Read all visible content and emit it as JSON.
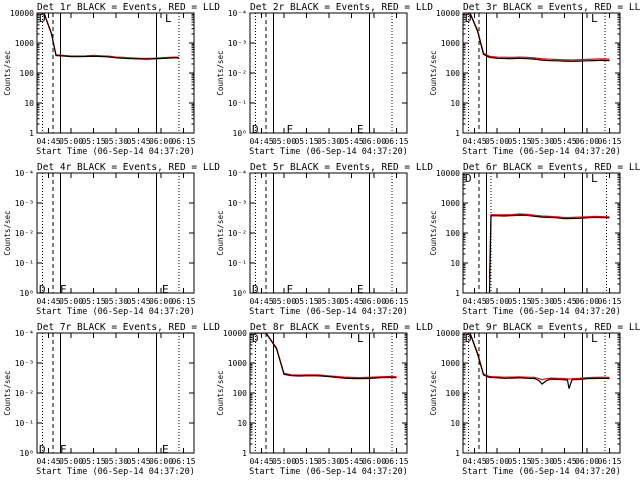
{
  "figure": {
    "background": "#ffffff",
    "axis_color": "#000000",
    "events_color": "#000000",
    "lld_color": "#ff0000"
  },
  "chart_data": [
    {
      "type": "line",
      "title": "Det 1r BLACK = Events, RED = LLD",
      "xlabel": "Start Time (06-Sep-14 04:37:20)",
      "ylabel": "Counts/sec",
      "x_ticks": [
        "04:45",
        "05:00",
        "05:15",
        "05:30",
        "05:45",
        "06:00",
        "06:15"
      ],
      "y_ticks": [
        "1",
        "10",
        "100",
        "1000",
        "10000"
      ],
      "y_log": true,
      "ylim": [
        1,
        10000
      ],
      "markers": [
        {
          "label": "D",
          "x": "04:38",
          "y": 10000
        },
        {
          "label": "L",
          "x": "06:02",
          "y": 10000
        }
      ],
      "series": [
        {
          "name": "Events",
          "color": "#000000",
          "x": [
            "04:38",
            "04:42",
            "04:47",
            "04:50",
            "04:55",
            "05:00",
            "05:05",
            "05:10",
            "05:15",
            "05:20",
            "05:25",
            "05:30",
            "05:35",
            "05:40",
            "05:45",
            "05:50",
            "05:55",
            "06:00",
            "06:05",
            "06:10",
            "06:12"
          ],
          "y": [
            10000,
            10000,
            2000,
            380,
            370,
            350,
            350,
            355,
            360,
            355,
            345,
            320,
            310,
            300,
            295,
            290,
            295,
            305,
            315,
            320,
            315
          ]
        },
        {
          "name": "LLD",
          "color": "#ff0000",
          "x": [
            "04:38",
            "04:42",
            "04:47",
            "04:50",
            "04:55",
            "05:00",
            "05:05",
            "05:10",
            "05:15",
            "05:20",
            "05:25",
            "05:30",
            "05:35",
            "05:40",
            "05:45",
            "05:50",
            "05:55",
            "06:00",
            "06:05",
            "06:10",
            "06:12"
          ],
          "y": [
            10000,
            10000,
            2100,
            400,
            390,
            370,
            370,
            375,
            385,
            375,
            365,
            340,
            330,
            318,
            312,
            308,
            312,
            322,
            332,
            338,
            332
          ]
        }
      ]
    },
    {
      "type": "line",
      "title": "Det 2r BLACK = Events, RED = LLD",
      "xlabel": "Start Time (06-Sep-14 04:37:20)",
      "ylabel": "Counts/sec",
      "x_ticks": [
        "04:45",
        "05:00",
        "05:15",
        "05:30",
        "05:45",
        "06:00",
        "06:15"
      ],
      "y_ticks": [
        "10⁰",
        "10⁻¹",
        "10⁻²",
        "10⁻³",
        "10⁻⁴"
      ],
      "y_log": false,
      "ylim": [
        0,
        4
      ],
      "markers": [
        {
          "label": "D",
          "x": "04:38",
          "y": 0.3
        },
        {
          "label": "F",
          "x": "05:01",
          "y": 0.3
        },
        {
          "label": "E",
          "x": "05:48",
          "y": 0.3
        }
      ],
      "series": []
    },
    {
      "type": "line",
      "title": "Det 3r BLACK = Events, RED = LLD",
      "xlabel": "Start Time (06-Sep-14 04:37:20)",
      "ylabel": "Counts/sec",
      "x_ticks": [
        "04:45",
        "05:00",
        "05:15",
        "05:30",
        "05:45",
        "06:00",
        "06:15"
      ],
      "y_ticks": [
        "1",
        "10",
        "100",
        "1000",
        "10000"
      ],
      "y_log": true,
      "ylim": [
        1,
        10000
      ],
      "markers": [
        {
          "label": "D",
          "x": "04:38",
          "y": 10000
        },
        {
          "label": "L",
          "x": "06:02",
          "y": 10000
        }
      ],
      "series": [
        {
          "name": "Events",
          "color": "#000000",
          "x": [
            "04:38",
            "04:42",
            "04:47",
            "04:51",
            "04:55",
            "05:00",
            "05:05",
            "05:10",
            "05:15",
            "05:20",
            "05:25",
            "05:30",
            "05:35",
            "05:40",
            "05:45",
            "05:50",
            "05:55",
            "06:00",
            "06:05",
            "06:10",
            "06:15"
          ],
          "y": [
            10000,
            10000,
            2500,
            420,
            330,
            310,
            305,
            300,
            310,
            300,
            290,
            270,
            260,
            255,
            250,
            245,
            250,
            255,
            260,
            265,
            260
          ]
        },
        {
          "name": "LLD",
          "color": "#ff0000",
          "x": [
            "04:38",
            "04:42",
            "04:47",
            "04:51",
            "04:55",
            "05:00",
            "05:05",
            "05:10",
            "05:15",
            "05:20",
            "05:25",
            "05:30",
            "05:35",
            "05:40",
            "05:45",
            "05:50",
            "05:55",
            "06:00",
            "06:05",
            "06:10",
            "06:15"
          ],
          "y": [
            10000,
            10000,
            2700,
            460,
            360,
            340,
            335,
            330,
            340,
            330,
            318,
            298,
            288,
            282,
            276,
            272,
            278,
            285,
            290,
            295,
            290
          ]
        }
      ]
    },
    {
      "type": "line",
      "title": "Det 4r BLACK = Events, RED = LLD",
      "xlabel": "Start Time (06-Sep-14 04:37:20)",
      "ylabel": "Counts/sec",
      "x_ticks": [
        "04:45",
        "05:00",
        "05:15",
        "05:30",
        "05:45",
        "06:00",
        "06:15"
      ],
      "y_ticks": [
        "10⁰",
        "10⁻¹",
        "10⁻²",
        "10⁻³",
        "10⁻⁴"
      ],
      "y_log": false,
      "ylim": [
        0,
        4
      ],
      "markers": [
        {
          "label": "D",
          "x": "04:38",
          "y": 0.3
        },
        {
          "label": "F",
          "x": "04:52",
          "y": 0.3
        },
        {
          "label": "E",
          "x": "06:00",
          "y": 0.3
        }
      ],
      "series": []
    },
    {
      "type": "line",
      "title": "Det 5r BLACK = Events, RED = LLD",
      "xlabel": "Start Time (06-Sep-14 04:37:20)",
      "ylabel": "Counts/sec",
      "x_ticks": [
        "04:45",
        "05:00",
        "05:15",
        "05:30",
        "05:45",
        "06:00",
        "06:15"
      ],
      "y_ticks": [
        "10⁰",
        "10⁻¹",
        "10⁻²",
        "10⁻³",
        "10⁻⁴"
      ],
      "y_log": false,
      "ylim": [
        0,
        4
      ],
      "markers": [
        {
          "label": "D",
          "x": "04:38",
          "y": 0.3
        },
        {
          "label": "F",
          "x": "05:01",
          "y": 0.3
        },
        {
          "label": "E",
          "x": "05:48",
          "y": 0.3
        }
      ],
      "series": []
    },
    {
      "type": "line",
      "title": "Det 6r BLACK = Events, RED = LLD",
      "xlabel": "Start Time (06-Sep-14 04:37:20)",
      "ylabel": "Counts/sec",
      "x_ticks": [
        "04:45",
        "05:00",
        "05:15",
        "05:30",
        "05:45",
        "06:00",
        "06:15"
      ],
      "y_ticks": [
        "1",
        "10",
        "100",
        "1000",
        "10000"
      ],
      "y_log": true,
      "ylim": [
        1,
        10000
      ],
      "markers": [
        {
          "label": "D",
          "x": "04:38",
          "y": 10000
        },
        {
          "label": "L",
          "x": "06:02",
          "y": 10000
        }
      ],
      "series": [
        {
          "name": "Events",
          "color": "#000000",
          "x": [
            "04:55",
            "04:56",
            "05:00",
            "05:05",
            "05:10",
            "05:15",
            "05:20",
            "05:25",
            "05:30",
            "05:35",
            "05:40",
            "05:45",
            "05:50",
            "05:55",
            "06:00",
            "06:05",
            "06:10",
            "06:15"
          ],
          "y": [
            1,
            380,
            375,
            370,
            380,
            395,
            385,
            360,
            340,
            330,
            320,
            300,
            305,
            310,
            320,
            330,
            325,
            320
          ]
        },
        {
          "name": "LLD",
          "color": "#ff0000",
          "x": [
            "04:55",
            "04:56",
            "05:00",
            "05:05",
            "05:10",
            "05:15",
            "05:20",
            "05:25",
            "05:30",
            "05:35",
            "05:40",
            "05:45",
            "05:50",
            "05:55",
            "06:00",
            "06:05",
            "06:10",
            "06:15"
          ],
          "y": [
            3,
            410,
            405,
            400,
            412,
            430,
            418,
            392,
            370,
            358,
            348,
            328,
            332,
            338,
            348,
            358,
            352,
            348
          ]
        }
      ]
    },
    {
      "type": "line",
      "title": "Det 7r BLACK = Events, RED = LLD",
      "xlabel": "Start Time (06-Sep-14 04:37:20)",
      "ylabel": "Counts/sec",
      "x_ticks": [
        "04:45",
        "05:00",
        "05:15",
        "05:30",
        "05:45",
        "06:00",
        "06:15"
      ],
      "y_ticks": [
        "10⁰",
        "10⁻¹",
        "10⁻²",
        "10⁻³",
        "10⁻⁴"
      ],
      "y_log": false,
      "ylim": [
        0,
        4
      ],
      "markers": [
        {
          "label": "D",
          "x": "04:38",
          "y": 0.3
        },
        {
          "label": "F",
          "x": "04:52",
          "y": 0.3
        },
        {
          "label": "E",
          "x": "06:00",
          "y": 0.3
        }
      ],
      "series": []
    },
    {
      "type": "line",
      "title": "Det 8r BLACK = Events, RED = LLD",
      "xlabel": "Start Time (06-Sep-14 04:37:20)",
      "ylabel": "Counts/sec",
      "x_ticks": [
        "04:45",
        "05:00",
        "05:15",
        "05:30",
        "05:45",
        "06:00",
        "06:15"
      ],
      "y_ticks": [
        "1",
        "10",
        "100",
        "1000",
        "10000"
      ],
      "y_log": true,
      "ylim": [
        1,
        10000
      ],
      "markers": [
        {
          "label": "D",
          "x": "04:38",
          "y": 10000
        },
        {
          "label": "L",
          "x": "05:48",
          "y": 10000
        }
      ],
      "series": [
        {
          "name": "Events",
          "color": "#000000",
          "x": [
            "04:38",
            "04:48",
            "04:55",
            "05:00",
            "05:05",
            "05:10",
            "05:15",
            "05:20",
            "05:25",
            "05:30",
            "05:35",
            "05:40",
            "05:45",
            "05:50",
            "05:55",
            "06:00",
            "06:05",
            "06:10",
            "06:15"
          ],
          "y": [
            10000,
            10000,
            3000,
            420,
            380,
            370,
            375,
            380,
            370,
            350,
            330,
            315,
            305,
            300,
            305,
            315,
            325,
            330,
            325
          ]
        },
        {
          "name": "LLD",
          "color": "#ff0000",
          "x": [
            "04:38",
            "04:48",
            "04:55",
            "05:00",
            "05:05",
            "05:10",
            "05:15",
            "05:20",
            "05:25",
            "05:30",
            "05:35",
            "05:40",
            "05:45",
            "05:50",
            "05:55",
            "06:00",
            "06:05",
            "06:10",
            "06:15"
          ],
          "y": [
            10000,
            10000,
            3200,
            450,
            405,
            395,
            400,
            405,
            395,
            375,
            355,
            340,
            330,
            325,
            330,
            340,
            350,
            355,
            350
          ]
        }
      ]
    },
    {
      "type": "line",
      "title": "Det 9r BLACK = Events, RED = LLD",
      "xlabel": "Start Time (06-Sep-14 04:37:20)",
      "ylabel": "Counts/sec",
      "x_ticks": [
        "04:45",
        "05:00",
        "05:15",
        "05:30",
        "05:45",
        "06:00",
        "06:15"
      ],
      "y_ticks": [
        "1",
        "10",
        "100",
        "1000",
        "10000"
      ],
      "y_log": true,
      "ylim": [
        1,
        10000
      ],
      "markers": [
        {
          "label": "D",
          "x": "04:38",
          "y": 10000
        },
        {
          "label": "L",
          "x": "06:02",
          "y": 10000
        }
      ],
      "series": [
        {
          "name": "Events",
          "color": "#000000",
          "x": [
            "04:38",
            "04:42",
            "04:47",
            "04:51",
            "04:55",
            "05:00",
            "05:05",
            "05:10",
            "05:15",
            "05:20",
            "05:25",
            "05:28",
            "05:30",
            "05:33",
            "05:36",
            "05:40",
            "05:44",
            "05:47",
            "05:48",
            "05:50",
            "05:55",
            "06:00",
            "06:05",
            "06:10",
            "06:15"
          ],
          "y": [
            10000,
            10000,
            2000,
            400,
            330,
            320,
            310,
            315,
            320,
            310,
            305,
            260,
            200,
            260,
            290,
            285,
            280,
            270,
            140,
            275,
            285,
            300,
            305,
            310,
            305
          ]
        },
        {
          "name": "LLD",
          "color": "#ff0000",
          "x": [
            "04:38",
            "04:42",
            "04:47",
            "04:51",
            "04:55",
            "05:00",
            "05:05",
            "05:10",
            "05:15",
            "05:20",
            "05:25",
            "05:28",
            "05:30",
            "05:33",
            "05:36",
            "05:40",
            "05:44",
            "05:47",
            "05:48",
            "05:50",
            "05:55",
            "06:00",
            "06:05",
            "06:10",
            "06:15"
          ],
          "y": [
            10000,
            10000,
            2200,
            430,
            355,
            345,
            335,
            340,
            345,
            335,
            330,
            300,
            280,
            300,
            315,
            310,
            305,
            298,
            290,
            300,
            310,
            325,
            330,
            335,
            330
          ]
        }
      ]
    }
  ]
}
